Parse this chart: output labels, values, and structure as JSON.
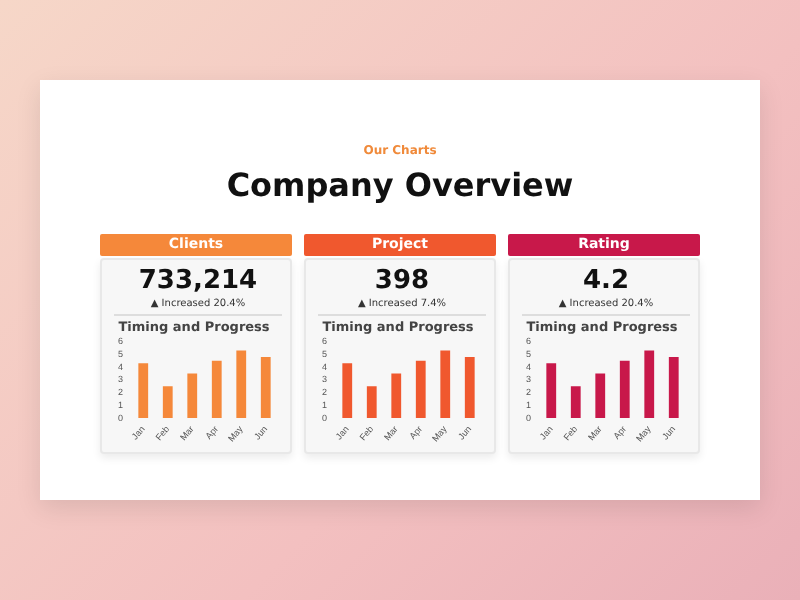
{
  "chart_data": [
    {
      "type": "other",
      "subtitle": "Our Charts",
      "title": "Company Overview"
    },
    {
      "type": "bar",
      "title": "Timing and Progress",
      "annotations": [
        "Clients",
        "733,214",
        "▲ Increased 20.4%"
      ],
      "categories": [
        "Jan",
        "Feb",
        "Mar",
        "Apr",
        "May",
        "Jun"
      ],
      "values": [
        4.3,
        2.5,
        3.5,
        4.5,
        5.3,
        4.8
      ],
      "color": "#f5883a",
      "ylim": [
        0,
        6
      ],
      "yticks": [
        0,
        1,
        2,
        3,
        4,
        5,
        6
      ],
      "grid": false,
      "legend": false
    },
    {
      "type": "bar",
      "title": "Timing and Progress",
      "annotations": [
        "Project",
        "398",
        "▲ Increased 7.4%"
      ],
      "categories": [
        "Jan",
        "Feb",
        "Mar",
        "Apr",
        "May",
        "Jun"
      ],
      "values": [
        4.3,
        2.5,
        3.5,
        4.5,
        5.3,
        4.8
      ],
      "color": "#f0582e",
      "ylim": [
        0,
        6
      ],
      "yticks": [
        0,
        1,
        2,
        3,
        4,
        5,
        6
      ],
      "grid": false,
      "legend": false
    },
    {
      "type": "bar",
      "title": "Timing and Progress",
      "annotations": [
        "Rating",
        "4.2",
        "▲ Increased 20.4%"
      ],
      "categories": [
        "Jan",
        "Feb",
        "Mar",
        "Apr",
        "May",
        "Jun"
      ],
      "values": [
        4.3,
        2.5,
        3.5,
        4.5,
        5.3,
        4.8
      ],
      "color": "#c8184a",
      "ylim": [
        0,
        6
      ],
      "yticks": [
        0,
        1,
        2,
        3,
        4,
        5,
        6
      ],
      "grid": false,
      "legend": false
    }
  ]
}
